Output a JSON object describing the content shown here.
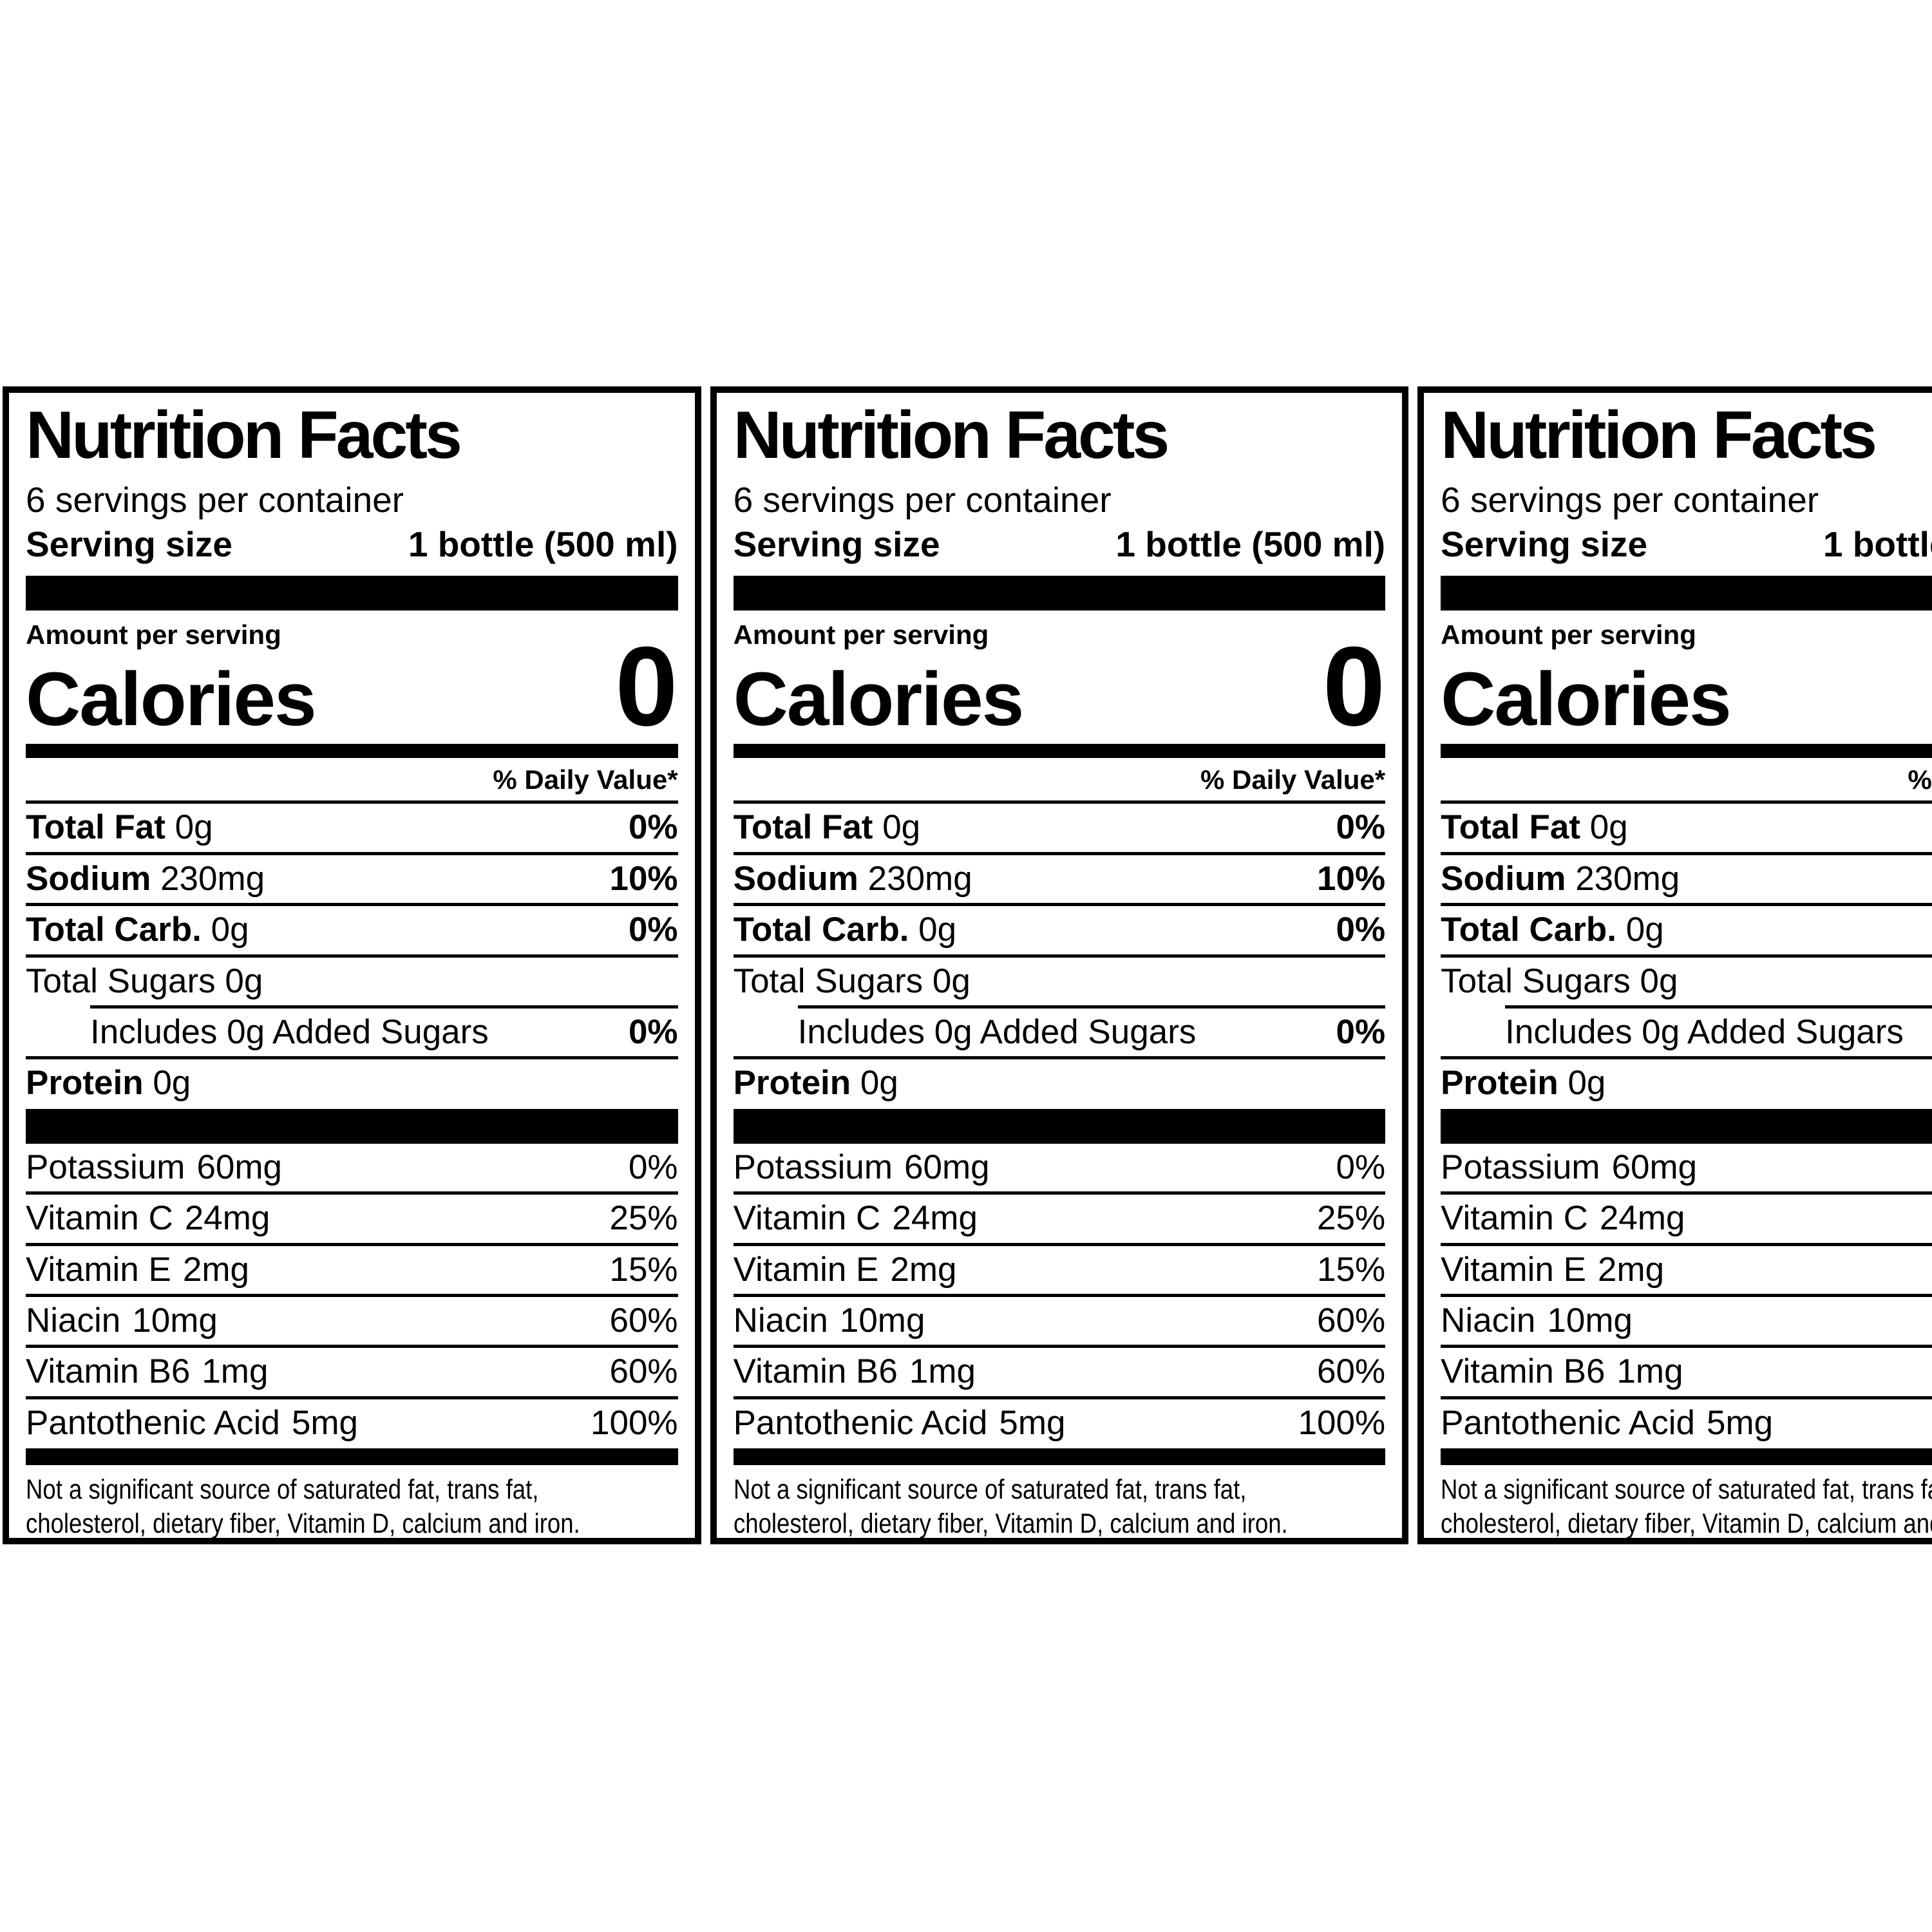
{
  "page": {
    "colors": {
      "ink": "#000000",
      "paper": "#ffffff"
    },
    "panel_count": 3
  },
  "label": {
    "title": "Nutrition Facts",
    "servings_per_container": "6 servings per container",
    "serving_size_label": "Serving size",
    "serving_size_value": "1 bottle (500 ml)",
    "amount_per_serving": "Amount per serving",
    "calories_label": "Calories",
    "calories_value": "0",
    "daily_value_header": "% Daily Value*",
    "nutrients": [
      {
        "name": "Total Fat",
        "amount": "0g",
        "dv": "0%"
      },
      {
        "name": "Sodium",
        "amount": "230mg",
        "dv": "10%"
      },
      {
        "name": "Total Carb.",
        "amount": "0g",
        "dv": "0%"
      },
      {
        "name": "Total Sugars",
        "amount": "0g",
        "dv": ""
      },
      {
        "name": "Includes 0g Added Sugars",
        "amount": "",
        "dv": "0%"
      },
      {
        "name": "Protein",
        "amount": "0g",
        "dv": ""
      }
    ],
    "micronutrients": [
      {
        "name": "Potassium",
        "amount": "60mg",
        "dv": "0%"
      },
      {
        "name": "Vitamin C",
        "amount": "24mg",
        "dv": "25%"
      },
      {
        "name": "Vitamin E",
        "amount": "2mg",
        "dv": "15%"
      },
      {
        "name": "Niacin",
        "amount": "10mg",
        "dv": "60%"
      },
      {
        "name": "Vitamin B6",
        "amount": "1mg",
        "dv": "60%"
      },
      {
        "name": "Pantothenic Acid",
        "amount": "5mg",
        "dv": "100%"
      }
    ],
    "footnote_lines": [
      "Not a significant source of saturated fat, trans fat,",
      "cholesterol, dietary fiber, Vitamin D, calcium and iron."
    ]
  }
}
